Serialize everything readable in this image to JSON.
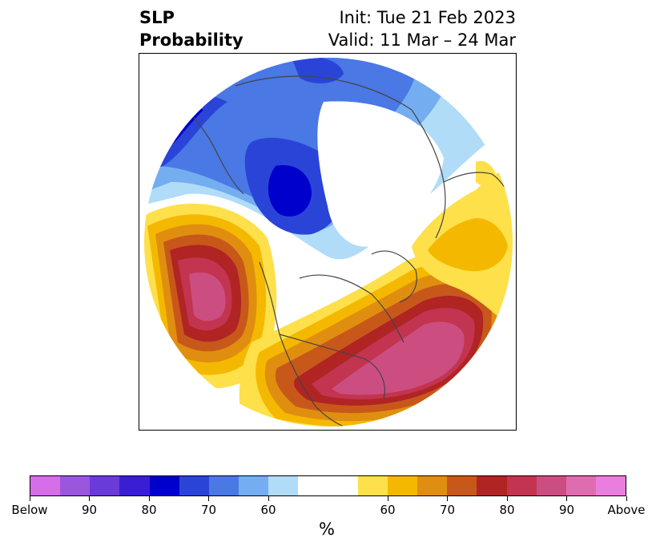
{
  "title": {
    "left_line1": "SLP",
    "left_line2": "Probability",
    "right_line1": "Init: Tue 21 Feb 2023",
    "right_line2": "Valid: 11 Mar – 24 Mar"
  },
  "colorbar": {
    "unit": "%",
    "colors": [
      "#d56ee8",
      "#9b56de",
      "#6a3bd9",
      "#3a1ed6",
      "#0000cc",
      "#2a44d8",
      "#4a78e4",
      "#74aef0",
      "#b0dcf8",
      "#ffffff",
      "#ffffff",
      "#fde04a",
      "#f5b800",
      "#e08e10",
      "#c8581a",
      "#b02424",
      "#c23450",
      "#cc4e80",
      "#e06cb0",
      "#ea7ee0"
    ],
    "ticks": [
      {
        "label": "Below",
        "index": 0
      },
      {
        "label": "90",
        "index": 2
      },
      {
        "label": "80",
        "index": 4
      },
      {
        "label": "70",
        "index": 6
      },
      {
        "label": "60",
        "index": 8
      },
      {
        "label": "60",
        "index": 12
      },
      {
        "label": "70",
        "index": 14
      },
      {
        "label": "80",
        "index": 16
      },
      {
        "label": "90",
        "index": 18
      },
      {
        "label": "Above",
        "index": 20
      }
    ]
  },
  "map": {
    "projection": "north-polar-stereographic",
    "land_outline_color": "#444444",
    "features": [
      {
        "name": "NE Pacific high anomaly",
        "category": "above",
        "peak": "Above"
      },
      {
        "name": "Eastern US / W Atlantic high anomaly",
        "category": "above",
        "peak": "Above"
      },
      {
        "name": "Europe weak high anomaly",
        "category": "above",
        "peak": "60-70"
      },
      {
        "name": "Arctic / Siberia low anomaly",
        "category": "below",
        "peak": "80-90"
      },
      {
        "name": "North Pacific Asia low anomaly",
        "category": "below",
        "peak": "80"
      }
    ]
  }
}
